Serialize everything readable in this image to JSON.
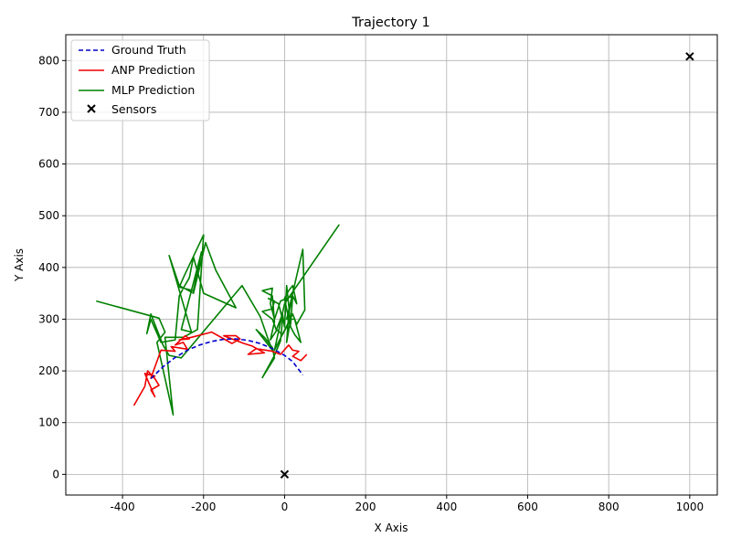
{
  "chart_data": {
    "type": "line",
    "title": "Trajectory 1",
    "xlabel": "X Axis",
    "ylabel": "Y Axis",
    "xlim": [
      -540,
      1068
    ],
    "ylim": [
      -40,
      850
    ],
    "xticks": [
      -400,
      -200,
      0,
      200,
      400,
      600,
      800,
      1000
    ],
    "yticks": [
      0,
      100,
      200,
      300,
      400,
      500,
      600,
      700,
      800
    ],
    "grid": true,
    "legend_position": "top-left",
    "series": [
      {
        "name": "Ground Truth",
        "style": "dashed",
        "color": "#0000cc",
        "points": [
          [
            -330,
            185
          ],
          [
            -300,
            208
          ],
          [
            -270,
            226
          ],
          [
            -240,
            240
          ],
          [
            -210,
            250
          ],
          [
            -180,
            257
          ],
          [
            -150,
            261
          ],
          [
            -120,
            262
          ],
          [
            -90,
            259
          ],
          [
            -60,
            253
          ],
          [
            -30,
            243
          ],
          [
            0,
            230
          ],
          [
            20,
            218
          ],
          [
            45,
            192
          ]
        ]
      },
      {
        "name": "ANP Prediction",
        "style": "solid",
        "color": "#ee0000",
        "points": [
          [
            -372,
            133
          ],
          [
            -345,
            170
          ],
          [
            -338,
            200
          ],
          [
            -320,
            185
          ],
          [
            -310,
            172
          ],
          [
            -330,
            163
          ],
          [
            -320,
            150
          ],
          [
            -345,
            195
          ],
          [
            -320,
            190
          ],
          [
            -330,
            186
          ],
          [
            -305,
            240
          ],
          [
            -270,
            238
          ],
          [
            -280,
            247
          ],
          [
            -240,
            242
          ],
          [
            -250,
            255
          ],
          [
            -270,
            250
          ],
          [
            -245,
            268
          ],
          [
            -235,
            262
          ],
          [
            -260,
            260
          ],
          [
            -230,
            265
          ],
          [
            -180,
            275
          ],
          [
            -150,
            262
          ],
          [
            -130,
            253
          ],
          [
            -110,
            262
          ],
          [
            -120,
            268
          ],
          [
            -150,
            268
          ],
          [
            -100,
            253
          ],
          [
            -80,
            248
          ],
          [
            -50,
            235
          ],
          [
            -90,
            232
          ],
          [
            -70,
            243
          ],
          [
            -30,
            238
          ],
          [
            -10,
            232
          ],
          [
            10,
            250
          ],
          [
            20,
            240
          ],
          [
            35,
            238
          ],
          [
            20,
            228
          ],
          [
            40,
            220
          ],
          [
            55,
            232
          ]
        ]
      },
      {
        "name": "MLP Prediction",
        "style": "solid",
        "color": "#008000",
        "points": [
          [
            -465,
            335
          ],
          [
            -310,
            302
          ],
          [
            -295,
            275
          ],
          [
            -315,
            255
          ],
          [
            -275,
            115
          ],
          [
            -295,
            265
          ],
          [
            -250,
            265
          ],
          [
            -215,
            280
          ],
          [
            -200,
            463
          ],
          [
            -250,
            380
          ],
          [
            -260,
            362
          ],
          [
            -225,
            355
          ],
          [
            -205,
            430
          ],
          [
            -245,
            310
          ],
          [
            -255,
            280
          ],
          [
            -230,
            275
          ],
          [
            -285,
            423
          ],
          [
            -260,
            365
          ],
          [
            -225,
            350
          ],
          [
            -195,
            448
          ],
          [
            -170,
            395
          ],
          [
            -120,
            322
          ],
          [
            -200,
            350
          ],
          [
            -225,
            420
          ],
          [
            -235,
            380
          ],
          [
            -250,
            360
          ],
          [
            -260,
            345
          ],
          [
            -270,
            260
          ],
          [
            -305,
            255
          ],
          [
            -330,
            300
          ],
          [
            -340,
            272
          ],
          [
            -330,
            310
          ],
          [
            -300,
            250
          ],
          [
            -285,
            230
          ],
          [
            -255,
            225
          ],
          [
            -105,
            365
          ],
          [
            -60,
            305
          ],
          [
            -40,
            260
          ],
          [
            -30,
            240
          ],
          [
            -70,
            280
          ],
          [
            -50,
            265
          ],
          [
            -30,
            245
          ],
          [
            -25,
            225
          ],
          [
            -55,
            187
          ],
          [
            -25,
            230
          ],
          [
            -10,
            258
          ],
          [
            -5,
            300
          ],
          [
            -15,
            330
          ],
          [
            -40,
            340
          ],
          [
            -25,
            335
          ],
          [
            -30,
            320
          ],
          [
            -55,
            315
          ],
          [
            -30,
            300
          ],
          [
            -20,
            278
          ],
          [
            -35,
            260
          ],
          [
            -25,
            295
          ],
          [
            -30,
            345
          ],
          [
            -55,
            355
          ],
          [
            -30,
            360
          ],
          [
            -35,
            330
          ],
          [
            -25,
            300
          ],
          [
            -10,
            335
          ],
          [
            20,
            345
          ],
          [
            10,
            310
          ],
          [
            5,
            255
          ],
          [
            15,
            300
          ],
          [
            -5,
            270
          ],
          [
            -20,
            280
          ],
          [
            -5,
            310
          ],
          [
            0,
            285
          ],
          [
            5,
            365
          ],
          [
            15,
            290
          ],
          [
            20,
            345
          ],
          [
            30,
            330
          ],
          [
            20,
            365
          ],
          [
            10,
            355
          ],
          [
            0,
            340
          ],
          [
            10,
            300
          ],
          [
            15,
            285
          ],
          [
            25,
            270
          ],
          [
            40,
            255
          ],
          [
            25,
            300
          ],
          [
            5,
            300
          ],
          [
            45,
            435
          ],
          [
            50,
            318
          ],
          [
            30,
            290
          ],
          [
            20,
            310
          ],
          [
            -25,
            240
          ],
          [
            0,
            330
          ],
          [
            135,
            483
          ]
        ]
      },
      {
        "name": "Sensors",
        "style": "marker-x",
        "color": "#000000",
        "points": [
          [
            0,
            0
          ],
          [
            1000,
            808
          ]
        ]
      }
    ]
  }
}
